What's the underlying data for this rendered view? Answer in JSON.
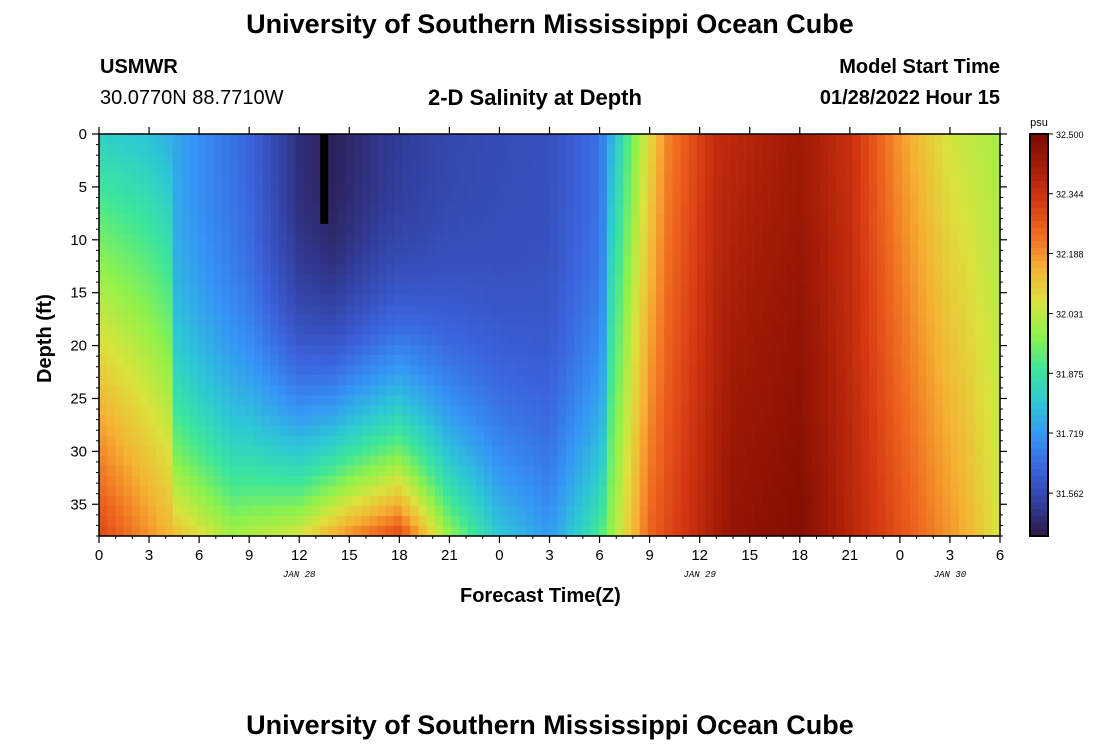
{
  "header": {
    "title_top": "University of Southern Mississippi Ocean Cube",
    "station": "USMWR",
    "coords": "30.0770N  88.7710W",
    "subtitle": "2-D Salinity at Depth",
    "model_label": "Model Start Time",
    "model_time": "01/28/2022 Hour 15",
    "title_bottom": "University of Southern Mississippi Ocean Cube"
  },
  "colors": {
    "scale": [
      "#2b1845",
      "#3240a0",
      "#3b63dc",
      "#3596f5",
      "#2dc8d5",
      "#3ee69a",
      "#90f24a",
      "#dbe23d",
      "#f5b133",
      "#f06a1f",
      "#d53712",
      "#a51c06",
      "#7a0a02"
    ]
  },
  "chart_data": {
    "type": "heatmap",
    "xlabel": "Forecast Time(Z)",
    "ylabel": "Depth (ft)",
    "x_ticks": [
      "0",
      "3",
      "6",
      "9",
      "12",
      "15",
      "18",
      "21",
      "0",
      "3",
      "6",
      "9",
      "12",
      "15",
      "18",
      "21",
      "0",
      "3",
      "6"
    ],
    "x_hours": [
      0,
      54
    ],
    "y_ticks": [
      0,
      5,
      10,
      15,
      20,
      25,
      30,
      35
    ],
    "ylim": [
      0,
      38
    ],
    "date_labels": [
      {
        "label": "JAN 28",
        "hour": 12
      },
      {
        "label": "JAN 29",
        "hour": 36
      },
      {
        "label": "JAN 30",
        "hour": 51
      }
    ],
    "colorbar": {
      "unit": "psu",
      "min": 31.45,
      "max": 32.5,
      "ticks": [
        "32.500",
        "32.344",
        "32.188",
        "32.031",
        "31.875",
        "31.719",
        "31.562"
      ]
    },
    "black_marker": {
      "hour": 13.5,
      "depth_top": 0,
      "depth_bottom": 8.5
    },
    "surface_salinity_by_hour": [
      [
        0,
        31.82
      ],
      [
        3,
        31.79
      ],
      [
        6,
        31.7
      ],
      [
        9,
        31.63
      ],
      [
        12,
        31.5
      ],
      [
        14,
        31.47
      ],
      [
        17,
        31.52
      ],
      [
        21,
        31.56
      ],
      [
        24,
        31.57
      ],
      [
        27,
        31.58
      ],
      [
        30,
        31.65
      ],
      [
        32,
        31.95
      ],
      [
        34,
        32.2
      ],
      [
        37,
        32.36
      ],
      [
        42,
        32.42
      ],
      [
        45,
        32.35
      ],
      [
        48,
        32.18
      ],
      [
        51,
        32.05
      ],
      [
        54,
        32.0
      ]
    ],
    "bottom_salinity_by_hour": [
      [
        0,
        32.3
      ],
      [
        4,
        32.15
      ],
      [
        8,
        32.0
      ],
      [
        12,
        32.06
      ],
      [
        15,
        32.2
      ],
      [
        18,
        32.3
      ],
      [
        21,
        31.98
      ],
      [
        24,
        31.8
      ],
      [
        27,
        31.72
      ],
      [
        30,
        31.9
      ],
      [
        33,
        32.25
      ],
      [
        38,
        32.45
      ],
      [
        42,
        32.48
      ],
      [
        45,
        32.38
      ],
      [
        48,
        32.28
      ],
      [
        52,
        32.15
      ],
      [
        54,
        32.05
      ]
    ]
  }
}
